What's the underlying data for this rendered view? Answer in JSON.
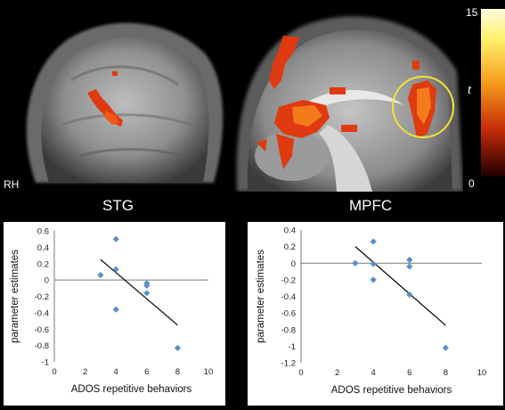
{
  "labels": {
    "hemisphere": "RH",
    "colorbar_max": "15",
    "colorbar_min": "0",
    "colorbar_stat": "t",
    "left_region": "STG",
    "right_region": "MPFC"
  },
  "colors": {
    "background": "#000000",
    "activation": "#e03a10",
    "roi_circle": "#f2e23a",
    "point": "#5b8fc7",
    "trendline": "#000000"
  },
  "chart_data": [
    {
      "type": "scatter",
      "title": "STG",
      "xlabel": "ADOS repetitive behaviors",
      "ylabel": "parameter estimates",
      "xlim": [
        0,
        10
      ],
      "ylim": [
        -1,
        0.6
      ],
      "xticks": [
        0,
        2,
        4,
        6,
        8,
        10
      ],
      "yticks": [
        -1,
        -0.8,
        -0.6,
        -0.4,
        -0.2,
        0,
        0.2,
        0.4,
        0.6
      ],
      "ytick_labels": [
        "-1",
        "-0.8",
        "-0.6",
        "-0.4",
        "-0.2",
        "0",
        "0.2",
        "0.4",
        "0.6"
      ],
      "grid": false,
      "points": [
        {
          "x": 3,
          "y": 0.06
        },
        {
          "x": 4,
          "y": 0.5
        },
        {
          "x": 4,
          "y": 0.13
        },
        {
          "x": 4,
          "y": -0.36
        },
        {
          "x": 6,
          "y": -0.04
        },
        {
          "x": 6,
          "y": -0.07
        },
        {
          "x": 6,
          "y": -0.16
        },
        {
          "x": 8,
          "y": -0.83
        }
      ],
      "trendline": [
        [
          3,
          0.25
        ],
        [
          8,
          -0.55
        ]
      ]
    },
    {
      "type": "scatter",
      "title": "MPFC",
      "xlabel": "ADOS repetitive behaviors",
      "ylabel": "parameter estimates",
      "xlim": [
        0,
        10
      ],
      "ylim": [
        -1.2,
        0.4
      ],
      "xticks": [
        0,
        2,
        4,
        6,
        8,
        10
      ],
      "yticks": [
        -1.2,
        -1,
        -0.8,
        -0.6,
        -0.4,
        -0.2,
        0,
        0.2,
        0.4
      ],
      "ytick_labels": [
        "-1.2",
        "-1",
        "-0.8",
        "-0.6",
        "-0.4",
        "-0.2",
        "0",
        "0.2",
        "0.4"
      ],
      "grid": false,
      "points": [
        {
          "x": 3,
          "y": 0.0
        },
        {
          "x": 4,
          "y": 0.26
        },
        {
          "x": 4,
          "y": -0.01
        },
        {
          "x": 4,
          "y": -0.2
        },
        {
          "x": 6,
          "y": 0.04
        },
        {
          "x": 6,
          "y": -0.04
        },
        {
          "x": 6,
          "y": -0.38
        },
        {
          "x": 8,
          "y": -1.02
        }
      ],
      "trendline": [
        [
          3,
          0.2
        ],
        [
          8,
          -0.75
        ]
      ]
    }
  ]
}
